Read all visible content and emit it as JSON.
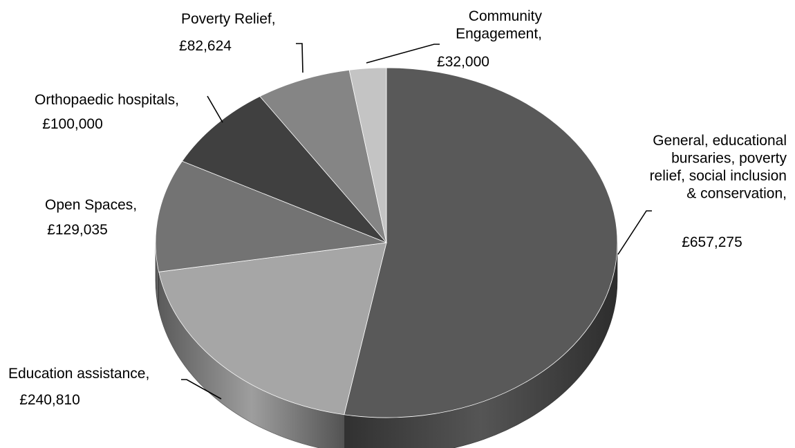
{
  "chart_data": {
    "type": "pie",
    "title": "",
    "style": "3d",
    "legend": "none",
    "series": [
      {
        "label": "General, educational bursaries, poverty relief, social inclusion & conservation",
        "value_text": "£657,275",
        "value": 657275,
        "color": "#595959"
      },
      {
        "label": "Education assistance",
        "value_text": "£240,810",
        "value": 240810,
        "color": "#a6a6a6"
      },
      {
        "label": "Open Spaces",
        "value_text": "£129,035",
        "value": 129035,
        "color": "#737373"
      },
      {
        "label": "Orthopaedic hospitals",
        "value_text": "£100,000",
        "value": 100000,
        "color": "#404040"
      },
      {
        "label": "Poverty Relief",
        "value_text": "£82,624",
        "value": 82624,
        "color": "#858585"
      },
      {
        "label": "Community Engagement",
        "value_text": "£32,000",
        "value": 32000,
        "color": "#c4c4c4"
      }
    ]
  }
}
